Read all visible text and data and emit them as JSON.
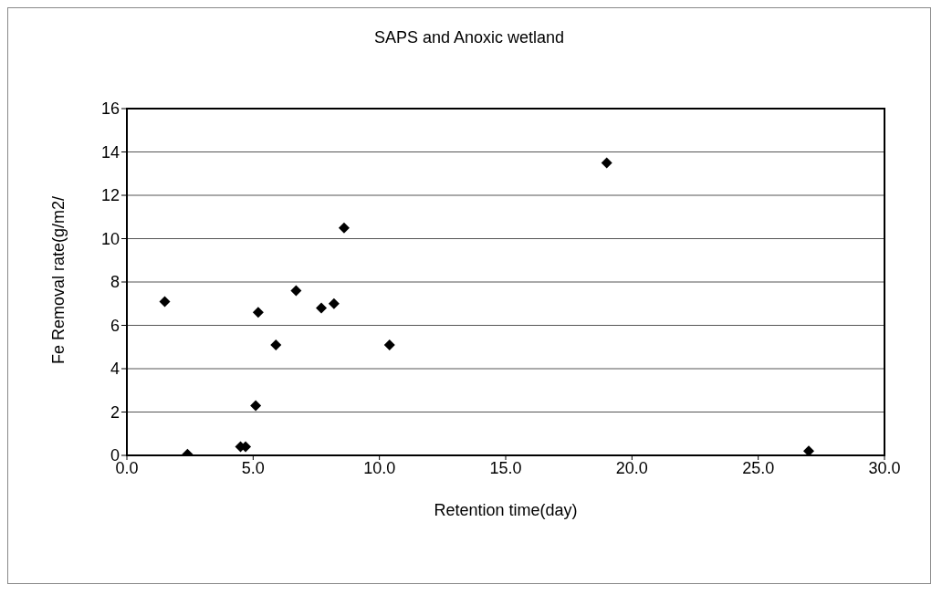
{
  "chart_data": {
    "type": "scatter",
    "title": "SAPS and Anoxic wetland",
    "xlabel": "Retention time(day)",
    "ylabel": "Fe Removal rate(g/m2/",
    "x": [
      1.5,
      2.4,
      4.5,
      4.7,
      5.1,
      5.2,
      5.9,
      6.7,
      7.7,
      8.2,
      8.6,
      10.4,
      19.0,
      27.0
    ],
    "values": [
      7.1,
      0.05,
      0.4,
      0.4,
      2.3,
      6.6,
      5.1,
      7.6,
      6.8,
      7.0,
      10.5,
      5.1,
      13.5,
      0.2
    ],
    "color": "#000000",
    "marker": "diamond",
    "xlim": [
      0,
      30
    ],
    "xticks": [
      {
        "value": 0,
        "label": "0.0"
      },
      {
        "value": 5,
        "label": "5.0"
      },
      {
        "value": 10,
        "label": "10.0"
      },
      {
        "value": 15,
        "label": "15.0"
      },
      {
        "value": 20,
        "label": "20.0"
      },
      {
        "value": 25,
        "label": "25.0"
      },
      {
        "value": 30,
        "label": "30.0"
      }
    ],
    "ylim": [
      0,
      16
    ],
    "yticks": [
      0,
      2,
      4,
      6,
      8,
      10,
      12,
      14,
      16
    ],
    "grid": "y"
  }
}
